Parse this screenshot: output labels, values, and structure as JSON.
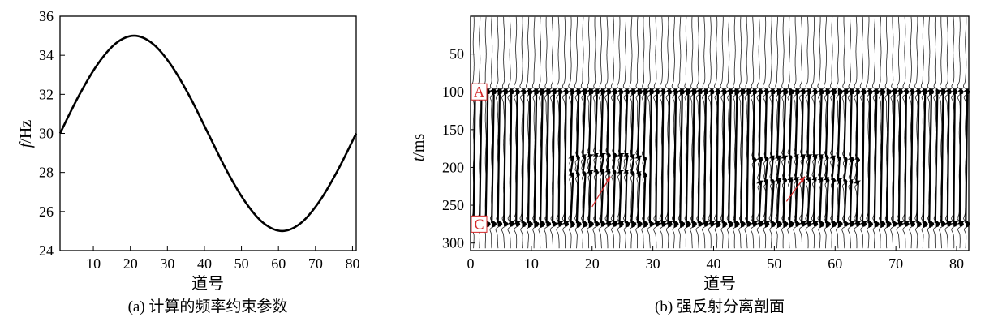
{
  "chart_data": [
    {
      "type": "line",
      "caption": "(a) 计算的频率约束参数",
      "xlabel": "道号",
      "ylabel_italic": "f",
      "ylabel_unit": "/Hz",
      "xlim": [
        1,
        81
      ],
      "ylim": [
        24,
        36
      ],
      "xticks": [
        10,
        20,
        30,
        40,
        50,
        60,
        70,
        80
      ],
      "yticks": [
        24,
        26,
        28,
        30,
        32,
        34,
        36
      ],
      "grid": false,
      "series": [
        {
          "x": [
            1,
            6,
            11,
            16,
            21,
            26,
            31,
            36,
            41,
            46,
            51,
            56,
            61,
            66,
            71,
            76,
            81
          ],
          "y": [
            30,
            31.9,
            33.5,
            34.6,
            35,
            34.6,
            33.5,
            31.9,
            30,
            28.1,
            26.5,
            25.4,
            25,
            25.4,
            26.5,
            28.1,
            30
          ]
        }
      ],
      "color": "#000000"
    },
    {
      "type": "seismic",
      "caption": "(b) 强反射分离剖面",
      "xlabel": "道号",
      "ylabel_italic": "t",
      "ylabel_unit": "/ms",
      "xlim": [
        0,
        82
      ],
      "ylim": [
        310,
        0
      ],
      "xticks": [
        0,
        10,
        20,
        30,
        40,
        50,
        60,
        70,
        80
      ],
      "yticks": [
        50,
        100,
        150,
        200,
        250,
        300
      ],
      "trace_count": 82,
      "strong_reflections": [
        {
          "label": "A",
          "time_ms": 100
        },
        {
          "label": "C",
          "time_ms": 275
        }
      ],
      "weak_reflections": [
        {
          "trace_start": 17,
          "trace_end": 29,
          "time_ms": 188
        },
        {
          "trace_start": 17,
          "trace_end": 29,
          "time_ms": 210
        },
        {
          "trace_start": 47,
          "trace_end": 64,
          "time_ms": 190
        },
        {
          "trace_start": 48,
          "trace_end": 64,
          "time_ms": 220
        }
      ],
      "arrows": [
        {
          "from": [
            20,
            252
          ],
          "to": [
            23,
            212
          ]
        },
        {
          "from": [
            52,
            245
          ],
          "to": [
            55,
            212
          ]
        }
      ],
      "marker_color": "#d62728"
    }
  ]
}
